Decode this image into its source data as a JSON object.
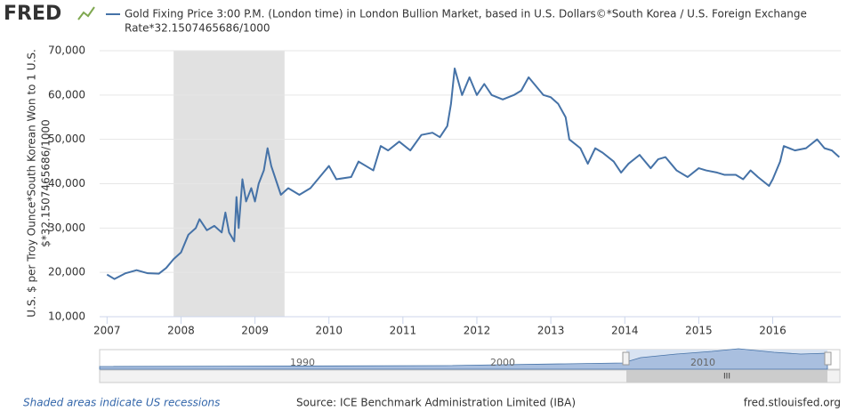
{
  "logo": "FRED",
  "chart_data": {
    "type": "line",
    "title": [
      "Gold Fixing Price 3:00 P.M. (London time) in London Bullion Market, based in U.S. Dollars©*South Korea / U.S. Foreign Exchange",
      "Rate*32.1507465686/1000"
    ],
    "y_label": [
      "U.S. $ per Troy Ounce*South Korean Won to 1 U.S.",
      "$*32.1507465686/1000"
    ],
    "x": [
      2007.0,
      2007.1,
      2007.25,
      2007.4,
      2007.55,
      2007.7,
      2007.8,
      2007.9,
      2008.0,
      2008.1,
      2008.2,
      2008.25,
      2008.35,
      2008.45,
      2008.55,
      2008.6,
      2008.65,
      2008.72,
      2008.75,
      2008.78,
      2008.83,
      2008.88,
      2008.95,
      2009.0,
      2009.05,
      2009.12,
      2009.17,
      2009.22,
      2009.3,
      2009.35,
      2009.45,
      2009.6,
      2009.75,
      2009.9,
      2010.0,
      2010.1,
      2010.3,
      2010.4,
      2010.5,
      2010.6,
      2010.7,
      2010.8,
      2010.95,
      2011.1,
      2011.25,
      2011.4,
      2011.5,
      2011.6,
      2011.65,
      2011.7,
      2011.75,
      2011.8,
      2011.9,
      2012.0,
      2012.1,
      2012.2,
      2012.35,
      2012.5,
      2012.6,
      2012.7,
      2012.8,
      2012.9,
      2013.0,
      2013.1,
      2013.2,
      2013.25,
      2013.4,
      2013.5,
      2013.6,
      2013.7,
      2013.85,
      2013.95,
      2014.05,
      2014.2,
      2014.35,
      2014.45,
      2014.55,
      2014.7,
      2014.85,
      2015.0,
      2015.1,
      2015.25,
      2015.35,
      2015.5,
      2015.6,
      2015.7,
      2015.8,
      2015.95,
      2016.0,
      2016.1,
      2016.15,
      2016.3,
      2016.45,
      2016.6,
      2016.7,
      2016.8,
      2016.9
    ],
    "series": [
      {
        "name": "Gold Fixing Price 3:00 P.M. (London time) in London Bullion Market, based in U.S. Dollars©*South Korea / U.S. Foreign Exchange Rate*32.1507465686/1000",
        "color": "#4572a7",
        "values": [
          19500,
          18500,
          19800,
          20500,
          19800,
          19700,
          21000,
          23000,
          24500,
          28500,
          30000,
          32000,
          29500,
          30500,
          29000,
          33500,
          29000,
          27000,
          37000,
          30000,
          41000,
          36000,
          39000,
          36000,
          40000,
          43000,
          48000,
          44000,
          40000,
          37500,
          39000,
          37500,
          39000,
          42000,
          44000,
          41000,
          41500,
          45000,
          44000,
          43000,
          48500,
          47500,
          49500,
          47500,
          51000,
          51500,
          50500,
          53000,
          58000,
          66000,
          63000,
          60000,
          64000,
          60000,
          62500,
          60000,
          59000,
          60000,
          61000,
          64000,
          62000,
          60000,
          59500,
          58000,
          55000,
          50000,
          48000,
          44500,
          48000,
          47000,
          45000,
          42500,
          44500,
          46500,
          43500,
          45500,
          46000,
          43000,
          41500,
          43500,
          43000,
          42500,
          42000,
          42000,
          41000,
          43000,
          41500,
          39500,
          41000,
          45000,
          48500,
          47500,
          48000,
          50000,
          48000,
          47500,
          46000
        ]
      }
    ],
    "recessions": [
      [
        2007.9,
        2009.4
      ]
    ],
    "recession_color": "#e1e1e1",
    "xlim": [
      2006.9,
      2016.92
    ],
    "xticks": [
      2007,
      2008,
      2009,
      2010,
      2011,
      2012,
      2013,
      2014,
      2015,
      2016
    ],
    "ylim": [
      10000,
      70000
    ],
    "yticks": [
      {
        "value": 10000,
        "label": "10,000"
      },
      {
        "value": 20000,
        "label": "20,000"
      },
      {
        "value": 30000,
        "label": "30,000"
      },
      {
        "value": 40000,
        "label": "40,000"
      },
      {
        "value": 50000,
        "label": "50,000"
      },
      {
        "value": 60000,
        "label": "60,000"
      },
      {
        "value": 70000,
        "label": "70,000"
      }
    ],
    "grid": true
  },
  "navigator": {
    "labels": [
      "1990",
      "2000",
      "2010"
    ],
    "scroll_label": "III"
  },
  "footer": {
    "note": "Shaded areas indicate US recessions",
    "source": "Source: ICE Benchmark Administration Limited (IBA)",
    "site": "fred.stlouisfed.org"
  }
}
